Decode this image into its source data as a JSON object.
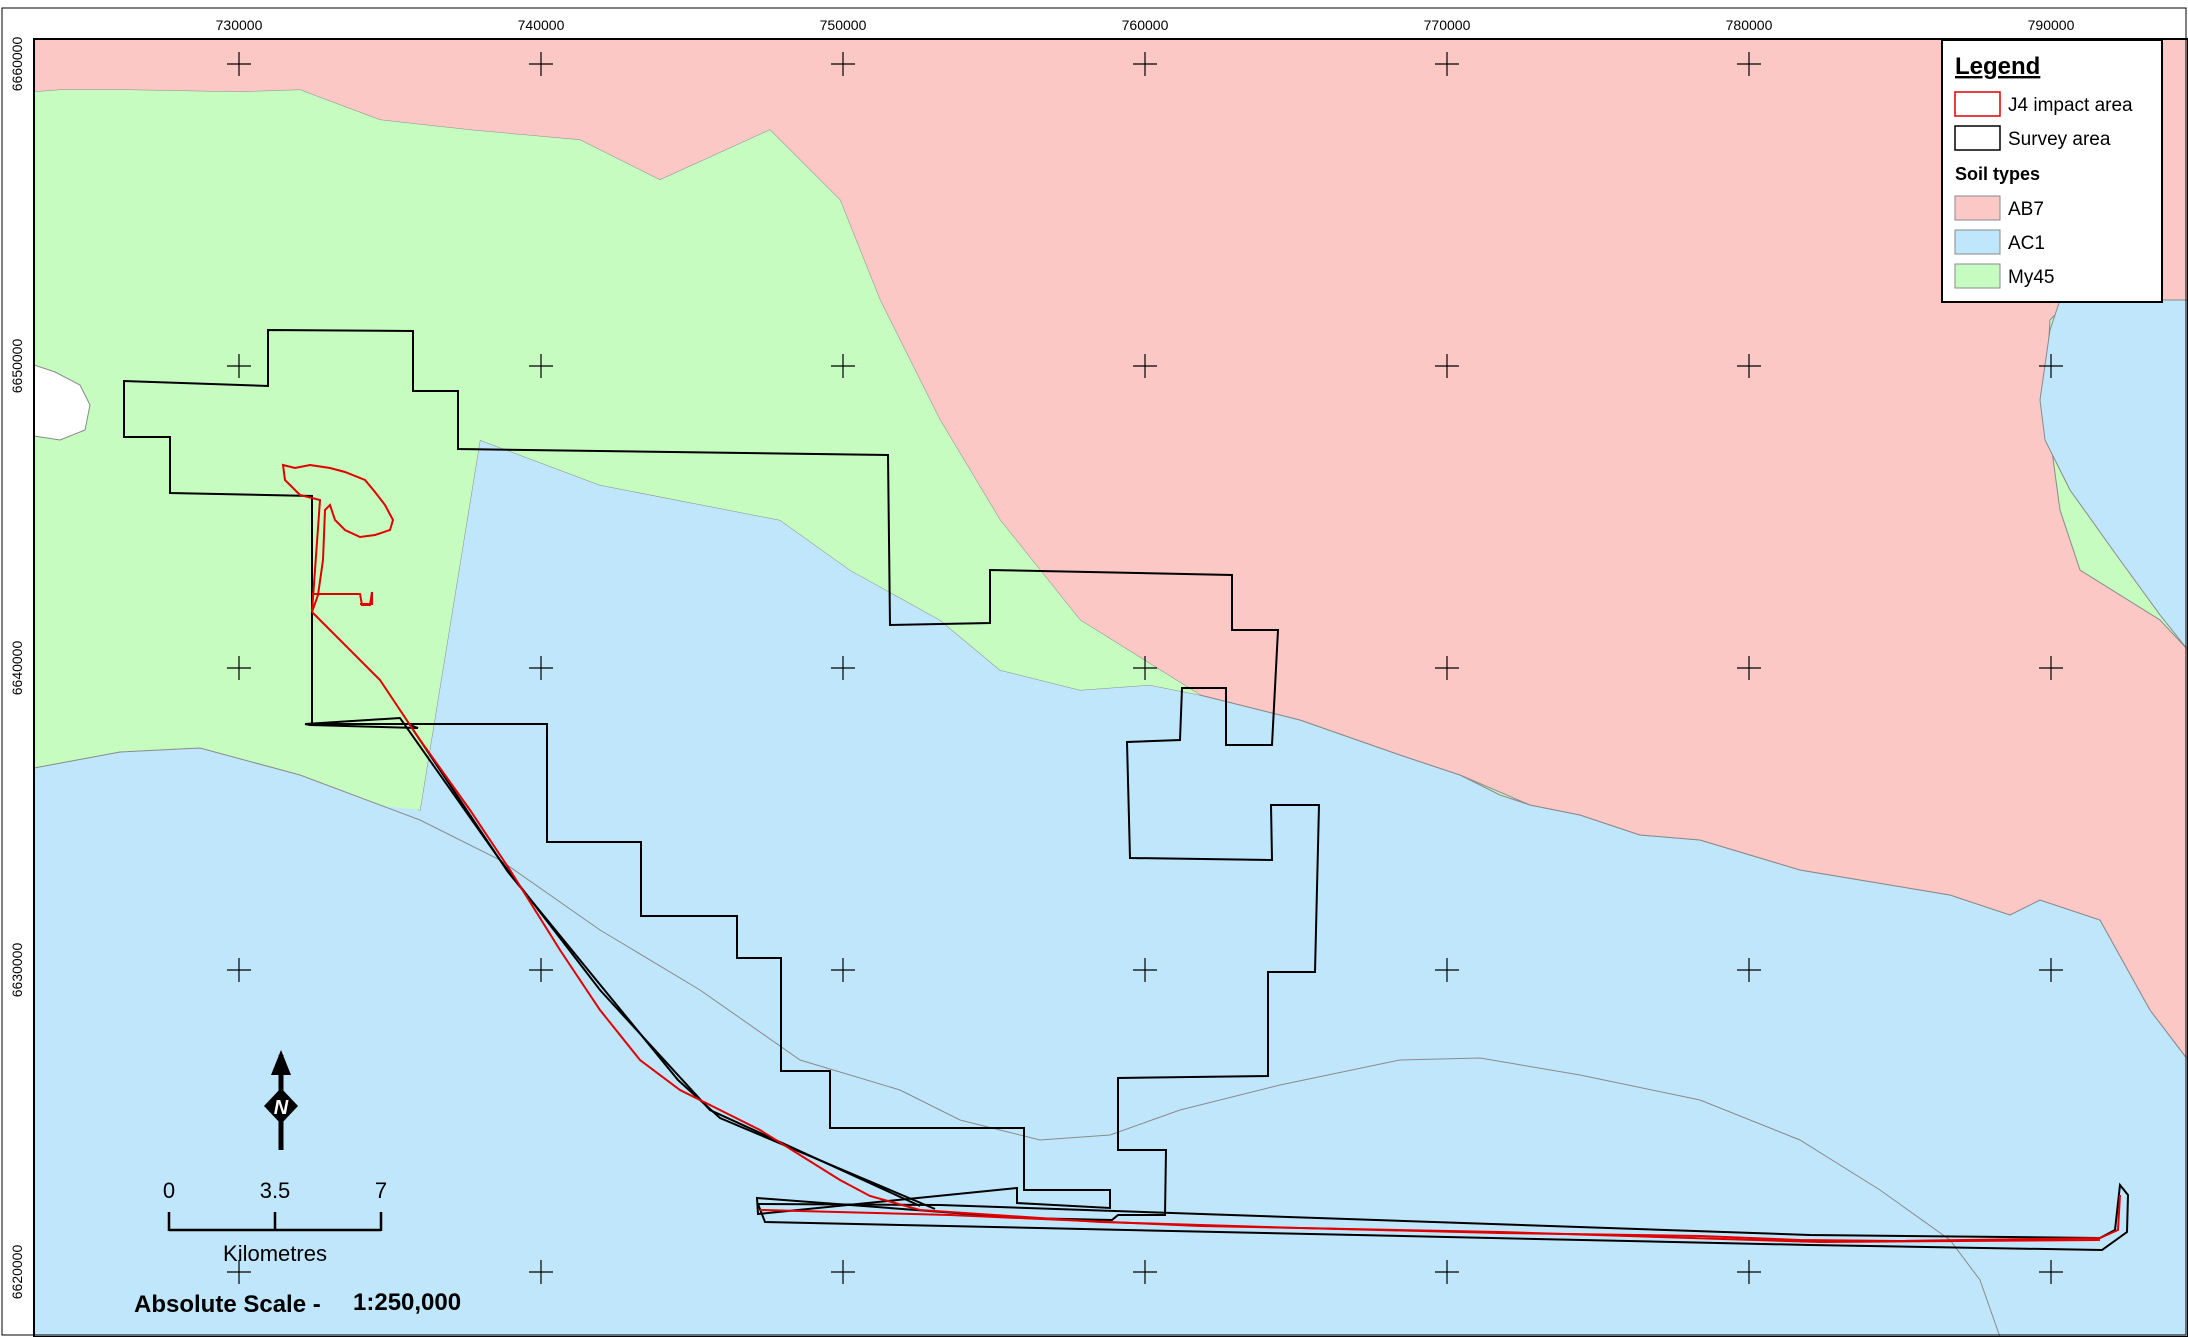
{
  "map": {
    "x_ticks": [
      "730000",
      "740000",
      "750000",
      "760000",
      "770000",
      "780000",
      "790000"
    ],
    "y_ticks": [
      "6660000",
      "6650000",
      "6640000",
      "6630000",
      "6620000"
    ]
  },
  "legend": {
    "title": "Legend",
    "items": [
      {
        "label": "J4 impact area",
        "fill": "#ffffff",
        "stroke": "#e00000"
      },
      {
        "label": "Survey area",
        "fill": "#ffffff",
        "stroke": "#000000"
      }
    ],
    "subtitle": "Soil types",
    "soil_types": [
      {
        "label": "AB7",
        "fill": "#fcc8c6"
      },
      {
        "label": "AC1",
        "fill": "#bfe6fb"
      },
      {
        "label": "My45",
        "fill": "#c6fcc0"
      }
    ]
  },
  "north_arrow": {
    "label": "N"
  },
  "scale_bar": {
    "labels": [
      "0",
      "3.5",
      "7"
    ],
    "unit": "Kilometres"
  },
  "absolute_scale": {
    "label": "Absolute Scale -",
    "value": "1:250,000"
  },
  "colors": {
    "ab7": "#fcc8c6",
    "ac1": "#bfe6fb",
    "my45": "#c6fcc0",
    "impact_line": "#e00000",
    "survey_line": "#000000"
  }
}
